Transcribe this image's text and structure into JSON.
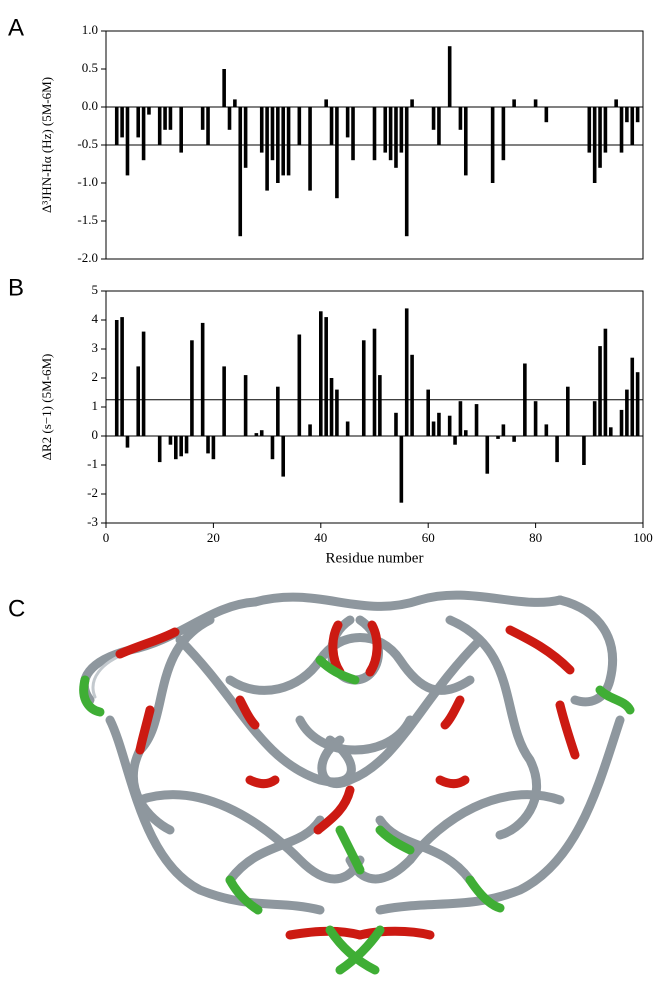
{
  "chart_data": [
    {
      "type": "bar",
      "panel_label": "A",
      "ylabel": "Δ³JHN-Hα (Hz) (5M-6M)",
      "color": "#000000",
      "x": [
        2,
        3,
        4,
        6,
        7,
        8,
        10,
        11,
        12,
        14,
        18,
        19,
        22,
        23,
        24,
        25,
        26,
        29,
        30,
        31,
        32,
        33,
        34,
        36,
        38,
        41,
        42,
        43,
        45,
        46,
        50,
        52,
        53,
        54,
        55,
        56,
        57,
        61,
        62,
        64,
        66,
        67,
        72,
        74,
        76,
        80,
        82,
        90,
        91,
        92,
        93,
        95,
        96,
        97,
        98,
        99
      ],
      "values": [
        -0.5,
        -0.4,
        -0.9,
        -0.4,
        -0.7,
        -0.1,
        -0.5,
        -0.3,
        -0.3,
        -0.6,
        -0.3,
        -0.5,
        0.5,
        -0.3,
        0.1,
        -1.7,
        -0.8,
        -0.6,
        -1.1,
        -0.7,
        -1.0,
        -0.9,
        -0.9,
        -0.5,
        -1.1,
        0.1,
        -0.5,
        -1.2,
        -0.4,
        -0.7,
        -0.7,
        -0.6,
        -0.7,
        -0.8,
        -0.6,
        -1.7,
        0.1,
        -0.3,
        -0.5,
        0.8,
        -0.3,
        -0.9,
        -1.0,
        -0.7,
        0.1,
        0.1,
        -0.2,
        -0.6,
        -1.0,
        -0.8,
        -0.6,
        0.1,
        -0.6,
        -0.2,
        -0.5,
        -0.2
      ],
      "hline": -0.5,
      "xlim": [
        0,
        100
      ],
      "ylim": [
        -2,
        1
      ],
      "yticks": [
        {
          "value": 1,
          "label": "1.0"
        },
        0.5,
        {
          "value": 0,
          "label": "0.0"
        },
        -0.5,
        {
          "value": -1,
          "label": "-1.0"
        },
        -1.5,
        {
          "value": -2,
          "label": "-2.0"
        }
      ]
    },
    {
      "type": "bar",
      "panel_label": "B",
      "ylabel": "ΔR2 (s−1) (5M-6M)",
      "xlabel": "Residue number",
      "color": "#000000",
      "x": [
        2,
        3,
        4,
        6,
        7,
        10,
        12,
        13,
        14,
        15,
        16,
        18,
        19,
        20,
        22,
        26,
        28,
        29,
        31,
        32,
        33,
        36,
        38,
        40,
        41,
        42,
        43,
        45,
        48,
        50,
        51,
        54,
        55,
        56,
        57,
        60,
        61,
        62,
        64,
        65,
        66,
        67,
        69,
        71,
        73,
        74,
        76,
        78,
        80,
        82,
        84,
        86,
        89,
        91,
        92,
        93,
        94,
        96,
        97,
        98,
        99
      ],
      "values": [
        4.0,
        4.1,
        -0.4,
        2.4,
        3.6,
        -0.9,
        -0.3,
        -0.8,
        -0.7,
        -0.6,
        3.3,
        3.9,
        -0.6,
        -0.8,
        2.4,
        2.1,
        0.1,
        0.2,
        -0.8,
        1.7,
        -1.4,
        3.5,
        0.4,
        4.3,
        4.1,
        2.0,
        1.6,
        0.5,
        3.3,
        3.7,
        2.1,
        0.8,
        -2.3,
        4.4,
        2.8,
        1.6,
        0.5,
        0.8,
        0.7,
        -0.3,
        1.2,
        0.2,
        1.1,
        -1.3,
        -0.1,
        0.4,
        -0.2,
        2.5,
        1.2,
        0.4,
        -0.9,
        1.7,
        -1.0,
        1.2,
        3.1,
        3.7,
        0.3,
        0.9,
        1.6,
        2.7,
        2.2
      ],
      "hline": 1.25,
      "xlim": [
        0,
        100
      ],
      "ylim": [
        -3,
        5
      ],
      "xticks": [
        0,
        20,
        40,
        60,
        80,
        100
      ],
      "yticks": [
        -3,
        -2,
        -1,
        0,
        1,
        2,
        3,
        4,
        5
      ]
    }
  ],
  "panel_c": {
    "label": "C"
  }
}
